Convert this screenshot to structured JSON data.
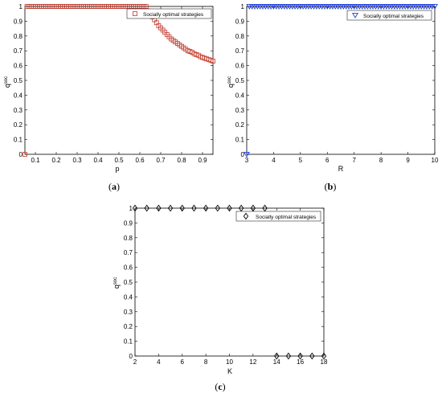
{
  "colors": {
    "a": "#c0392b",
    "b": "#1f3ee0",
    "c": "#000000"
  },
  "panels": [
    {
      "caption_open": "(",
      "caption_letter": "a",
      "caption_close": ")"
    },
    {
      "caption_open": "(",
      "caption_letter": "b",
      "caption_close": ")"
    },
    {
      "caption_open": "(",
      "caption_letter": "c",
      "caption_close": ")"
    }
  ],
  "chart_data": [
    {
      "type": "scatter",
      "panel": "a",
      "xlabel": "p",
      "ylabel_base": "q",
      "ylabel_sup": "soc",
      "xlim": [
        0.05,
        0.95
      ],
      "ylim": [
        0,
        1
      ],
      "xticks": [
        "0.1",
        "0.2",
        "0.3",
        "0.4",
        "0.5",
        "0.6",
        "0.7",
        "0.8",
        "0.9"
      ],
      "xtick_values": [
        0.1,
        0.2,
        0.3,
        0.4,
        0.5,
        0.6,
        0.7,
        0.8,
        0.9
      ],
      "yticks": [
        "0",
        "0.1",
        "0.2",
        "0.3",
        "0.4",
        "0.5",
        "0.6",
        "0.7",
        "0.8",
        "0.9",
        "1"
      ],
      "ytick_values": [
        0,
        0.1,
        0.2,
        0.3,
        0.4,
        0.5,
        0.6,
        0.7,
        0.8,
        0.9,
        1
      ],
      "marker": "square",
      "legend_position": "top-right",
      "series": [
        {
          "name": "Socially optimal strategies",
          "x": [
            0.05,
            0.06,
            0.07,
            0.08,
            0.09,
            0.1,
            0.11,
            0.12,
            0.13,
            0.14,
            0.15,
            0.16,
            0.17,
            0.18,
            0.19,
            0.2,
            0.21,
            0.22,
            0.23,
            0.24,
            0.25,
            0.26,
            0.27,
            0.28,
            0.29,
            0.3,
            0.31,
            0.32,
            0.33,
            0.34,
            0.35,
            0.36,
            0.37,
            0.38,
            0.39,
            0.4,
            0.41,
            0.42,
            0.43,
            0.44,
            0.45,
            0.46,
            0.47,
            0.48,
            0.49,
            0.5,
            0.51,
            0.52,
            0.53,
            0.54,
            0.55,
            0.56,
            0.57,
            0.58,
            0.59,
            0.6,
            0.61,
            0.62,
            0.63,
            0.64,
            0.65,
            0.66,
            0.67,
            0.68,
            0.69,
            0.7,
            0.71,
            0.72,
            0.73,
            0.74,
            0.75,
            0.76,
            0.77,
            0.78,
            0.79,
            0.8,
            0.81,
            0.82,
            0.83,
            0.84,
            0.85,
            0.86,
            0.87,
            0.88,
            0.89,
            0.9,
            0.91,
            0.92,
            0.93,
            0.94,
            0.95
          ],
          "y": [
            0,
            1,
            1,
            1,
            1,
            1,
            1,
            1,
            1,
            1,
            1,
            1,
            1,
            1,
            1,
            1,
            1,
            1,
            1,
            1,
            1,
            1,
            1,
            1,
            1,
            1,
            1,
            1,
            1,
            1,
            1,
            1,
            1,
            1,
            1,
            1,
            1,
            1,
            1,
            1,
            1,
            1,
            1,
            1,
            1,
            1,
            1,
            1,
            1,
            1,
            1,
            1,
            1,
            1,
            1,
            1,
            1,
            1,
            1,
            0.97,
            0.95,
            0.93,
            0.91,
            0.89,
            0.87,
            0.855,
            0.84,
            0.825,
            0.81,
            0.795,
            0.78,
            0.77,
            0.76,
            0.75,
            0.74,
            0.73,
            0.72,
            0.71,
            0.7,
            0.695,
            0.69,
            0.68,
            0.675,
            0.67,
            0.66,
            0.655,
            0.65,
            0.645,
            0.64,
            0.635,
            0.63
          ]
        }
      ]
    },
    {
      "type": "scatter",
      "panel": "b",
      "xlabel": "R",
      "ylabel_base": "q",
      "ylabel_sup": "soc",
      "xlim": [
        3,
        10
      ],
      "ylim": [
        0,
        1
      ],
      "xticks": [
        "3",
        "4",
        "5",
        "6",
        "7",
        "8",
        "9",
        "10"
      ],
      "xtick_values": [
        3,
        4,
        5,
        6,
        7,
        8,
        9,
        10
      ],
      "yticks": [
        "0",
        "0.1",
        "0.2",
        "0.3",
        "0.4",
        "0.5",
        "0.6",
        "0.7",
        "0.8",
        "0.9",
        "1"
      ],
      "ytick_values": [
        0,
        0.1,
        0.2,
        0.3,
        0.4,
        0.5,
        0.6,
        0.7,
        0.8,
        0.9,
        1
      ],
      "marker": "triangle-down",
      "legend_position": "top-right",
      "series": [
        {
          "name": "Socially optimal strategies",
          "x": [
            3,
            3.1,
            3.2,
            3.3,
            3.4,
            3.5,
            3.6,
            3.7,
            3.8,
            3.9,
            4,
            4.1,
            4.2,
            4.3,
            4.4,
            4.5,
            4.6,
            4.7,
            4.8,
            4.9,
            5,
            5.1,
            5.2,
            5.3,
            5.4,
            5.5,
            5.6,
            5.7,
            5.8,
            5.9,
            6,
            6.1,
            6.2,
            6.3,
            6.4,
            6.5,
            6.6,
            6.7,
            6.8,
            6.9,
            7,
            7.1,
            7.2,
            7.3,
            7.4,
            7.5,
            7.6,
            7.7,
            7.8,
            7.9,
            8,
            8.1,
            8.2,
            8.3,
            8.4,
            8.5,
            8.6,
            8.7,
            8.8,
            8.9,
            9,
            9.1,
            9.2,
            9.3,
            9.4,
            9.5,
            9.6,
            9.7,
            9.8,
            9.9,
            10
          ],
          "y": [
            0,
            1,
            1,
            1,
            1,
            1,
            1,
            1,
            1,
            1,
            1,
            1,
            1,
            1,
            1,
            1,
            1,
            1,
            1,
            1,
            1,
            1,
            1,
            1,
            1,
            1,
            1,
            1,
            1,
            1,
            1,
            1,
            1,
            1,
            1,
            1,
            1,
            1,
            1,
            1,
            1,
            1,
            1,
            1,
            1,
            1,
            1,
            1,
            1,
            1,
            1,
            1,
            1,
            1,
            1,
            1,
            1,
            1,
            1,
            1,
            1,
            1,
            1,
            1,
            1,
            1,
            1,
            1,
            1,
            1,
            1
          ]
        }
      ]
    },
    {
      "type": "scatter",
      "panel": "c",
      "xlabel": "K",
      "ylabel_base": "q",
      "ylabel_sup": "soc",
      "xlim": [
        2,
        18
      ],
      "ylim": [
        0,
        1
      ],
      "xticks": [
        "2",
        "4",
        "6",
        "8",
        "10",
        "12",
        "14",
        "16",
        "18"
      ],
      "xtick_values": [
        2,
        4,
        6,
        8,
        10,
        12,
        14,
        16,
        18
      ],
      "yticks": [
        "0",
        "0.1",
        "0.2",
        "0.3",
        "0.4",
        "0.5",
        "0.6",
        "0.7",
        "0.8",
        "0.9",
        "1"
      ],
      "ytick_values": [
        0,
        0.1,
        0.2,
        0.3,
        0.4,
        0.5,
        0.6,
        0.7,
        0.8,
        0.9,
        1
      ],
      "marker": "diamond",
      "legend_position": "top-right",
      "series": [
        {
          "name": "Socially optimal strategies",
          "x": [
            2,
            3,
            4,
            5,
            6,
            7,
            8,
            9,
            10,
            11,
            12,
            13,
            14,
            15,
            16,
            17,
            18
          ],
          "y": [
            1,
            1,
            1,
            1,
            1,
            1,
            1,
            1,
            1,
            1,
            1,
            1,
            0,
            0,
            0,
            0,
            0
          ]
        }
      ]
    }
  ]
}
